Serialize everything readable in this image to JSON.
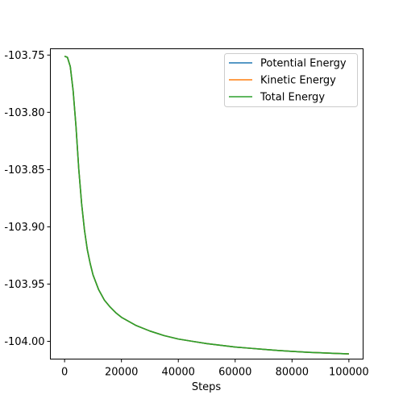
{
  "chart_data": {
    "type": "line",
    "title": "",
    "xlabel": "Steps",
    "ylabel": "",
    "xlim": [
      -5000,
      105000
    ],
    "ylim": [
      -104.0155,
      -103.7445
    ],
    "xticks": [
      0,
      20000,
      40000,
      60000,
      80000,
      100000
    ],
    "xtick_labels": [
      "0",
      "20000",
      "40000",
      "60000",
      "80000",
      "100000"
    ],
    "yticks": [
      -103.75,
      -103.8,
      -103.85,
      -103.9,
      -103.95,
      -104.0
    ],
    "ytick_labels": [
      "-103.75",
      "-103.80",
      "-103.85",
      "-103.90",
      "-103.95",
      "-104.00"
    ],
    "grid": false,
    "legend_position": "top-right",
    "x": [
      0,
      1000,
      2000,
      3000,
      4000,
      5000,
      6000,
      7000,
      8000,
      9000,
      10000,
      12000,
      14000,
      16000,
      18000,
      20000,
      25000,
      30000,
      35000,
      40000,
      45000,
      50000,
      55000,
      60000,
      65000,
      70000,
      75000,
      80000,
      85000,
      90000,
      95000,
      100000
    ],
    "series": [
      {
        "name": "Potential Energy",
        "color": "#1f77b4",
        "values": [
          -103.751,
          -103.752,
          -103.76,
          -103.781,
          -103.812,
          -103.85,
          -103.88,
          -103.903,
          -103.92,
          -103.932,
          -103.942,
          -103.955,
          -103.964,
          -103.97,
          -103.975,
          -103.979,
          -103.986,
          -103.991,
          -103.995,
          -103.998,
          -104.0,
          -104.002,
          -104.0035,
          -104.005,
          -104.006,
          -104.007,
          -104.008,
          -104.0088,
          -104.0095,
          -104.01,
          -104.0105,
          -104.011
        ]
      },
      {
        "name": "Kinetic Energy",
        "color": "#ff7f0e",
        "values": [
          -103.751,
          -103.752,
          -103.76,
          -103.781,
          -103.812,
          -103.85,
          -103.88,
          -103.903,
          -103.92,
          -103.932,
          -103.942,
          -103.955,
          -103.964,
          -103.97,
          -103.975,
          -103.979,
          -103.986,
          -103.991,
          -103.995,
          -103.998,
          -104.0,
          -104.002,
          -104.0035,
          -104.005,
          -104.006,
          -104.007,
          -104.008,
          -104.0088,
          -104.0095,
          -104.01,
          -104.0105,
          -104.011
        ]
      },
      {
        "name": "Total Energy",
        "color": "#2ca02c",
        "values": [
          -103.751,
          -103.752,
          -103.76,
          -103.781,
          -103.812,
          -103.85,
          -103.88,
          -103.903,
          -103.92,
          -103.932,
          -103.942,
          -103.955,
          -103.964,
          -103.97,
          -103.975,
          -103.979,
          -103.986,
          -103.991,
          -103.995,
          -103.998,
          -104.0,
          -104.002,
          -104.0035,
          -104.005,
          -104.006,
          -104.007,
          -104.008,
          -104.0088,
          -104.0095,
          -104.01,
          -104.0105,
          -104.011
        ]
      }
    ]
  }
}
